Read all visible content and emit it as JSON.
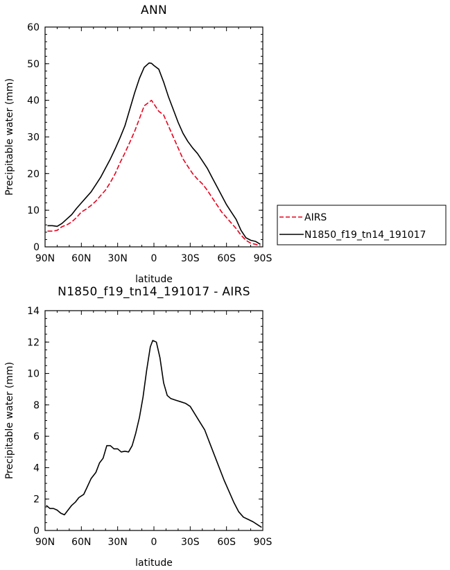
{
  "chart_data": [
    {
      "type": "line",
      "title": "ANN",
      "xlabel": "latitude",
      "ylabel": "Precipitable water (mm)",
      "xlim": [
        90,
        -90
      ],
      "ylim": [
        0,
        60
      ],
      "x_ticks": [
        {
          "v": 90,
          "label": "90N"
        },
        {
          "v": 60,
          "label": "60N"
        },
        {
          "v": 30,
          "label": "30N"
        },
        {
          "v": 0,
          "label": "0"
        },
        {
          "v": -30,
          "label": "30S"
        },
        {
          "v": -60,
          "label": "60S"
        },
        {
          "v": -90,
          "label": "90S"
        }
      ],
      "y_ticks": [
        0,
        10,
        20,
        30,
        40,
        50,
        60
      ],
      "legend_position": "right",
      "series": [
        {
          "name": "AIRS",
          "color": "#e8001c",
          "dashed": true,
          "points": [
            [
              88,
              4.3
            ],
            [
              84,
              4.3
            ],
            [
              80,
              4.5
            ],
            [
              76,
              5.5
            ],
            [
              72,
              6.0
            ],
            [
              68,
              6.8
            ],
            [
              64,
              8.0
            ],
            [
              60,
              9.5
            ],
            [
              56,
              10.3
            ],
            [
              52,
              11.3
            ],
            [
              48,
              12.5
            ],
            [
              44,
              14.0
            ],
            [
              40,
              15.5
            ],
            [
              36,
              17.6
            ],
            [
              32,
              20.0
            ],
            [
              28,
              23.0
            ],
            [
              24,
              25.6
            ],
            [
              20,
              28.5
            ],
            [
              16,
              31.5
            ],
            [
              12,
              35.0
            ],
            [
              8,
              38.5
            ],
            [
              4,
              39.5
            ],
            [
              2,
              40.0
            ],
            [
              0,
              39.0
            ],
            [
              -2,
              38.0
            ],
            [
              -4,
              37.0
            ],
            [
              -8,
              36.0
            ],
            [
              -12,
              33.0
            ],
            [
              -16,
              30.0
            ],
            [
              -20,
              27.0
            ],
            [
              -24,
              24.0
            ],
            [
              -28,
              22.0
            ],
            [
              -32,
              20.0
            ],
            [
              -36,
              18.5
            ],
            [
              -40,
              17.2
            ],
            [
              -44,
              15.5
            ],
            [
              -48,
              13.5
            ],
            [
              -52,
              11.5
            ],
            [
              -56,
              9.5
            ],
            [
              -60,
              8.0
            ],
            [
              -64,
              6.5
            ],
            [
              -68,
              5.0
            ],
            [
              -72,
              3.2
            ],
            [
              -76,
              1.8
            ],
            [
              -80,
              1.0
            ],
            [
              -84,
              0.7
            ],
            [
              -88,
              0.3
            ]
          ]
        },
        {
          "name": "N1850_f19_tn14_191017",
          "color": "#000000",
          "dashed": false,
          "points": [
            [
              88,
              5.8
            ],
            [
              84,
              5.8
            ],
            [
              80,
              5.6
            ],
            [
              76,
              6.4
            ],
            [
              72,
              7.6
            ],
            [
              68,
              8.8
            ],
            [
              64,
              10.5
            ],
            [
              60,
              12.0
            ],
            [
              56,
              13.5
            ],
            [
              52,
              15.0
            ],
            [
              48,
              17.0
            ],
            [
              44,
              19.0
            ],
            [
              40,
              21.5
            ],
            [
              36,
              24.0
            ],
            [
              32,
              26.8
            ],
            [
              28,
              29.8
            ],
            [
              24,
              33.0
            ],
            [
              20,
              37.5
            ],
            [
              16,
              42.0
            ],
            [
              12,
              46.0
            ],
            [
              8,
              49.0
            ],
            [
              4,
              50.2
            ],
            [
              2,
              50.1
            ],
            [
              0,
              49.5
            ],
            [
              -4,
              48.5
            ],
            [
              -8,
              45.0
            ],
            [
              -12,
              41.0
            ],
            [
              -16,
              37.5
            ],
            [
              -20,
              34.0
            ],
            [
              -24,
              31.0
            ],
            [
              -28,
              28.8
            ],
            [
              -32,
              27.0
            ],
            [
              -36,
              25.5
            ],
            [
              -40,
              23.5
            ],
            [
              -44,
              21.5
            ],
            [
              -48,
              19.0
            ],
            [
              -52,
              16.5
            ],
            [
              -56,
              14.0
            ],
            [
              -60,
              11.5
            ],
            [
              -64,
              9.5
            ],
            [
              -68,
              7.5
            ],
            [
              -72,
              4.5
            ],
            [
              -76,
              2.5
            ],
            [
              -80,
              1.8
            ],
            [
              -84,
              1.5
            ],
            [
              -88,
              0.7
            ]
          ]
        }
      ]
    },
    {
      "type": "line",
      "title": "N1850_f19_tn14_191017 - AIRS",
      "xlabel": "latitude",
      "ylabel": "Precipitable water (mm)",
      "xlim": [
        90,
        -90
      ],
      "ylim": [
        0,
        14
      ],
      "x_ticks": [
        {
          "v": 90,
          "label": "90N"
        },
        {
          "v": 60,
          "label": "60N"
        },
        {
          "v": 30,
          "label": "30N"
        },
        {
          "v": 0,
          "label": "0"
        },
        {
          "v": -30,
          "label": "30S"
        },
        {
          "v": -60,
          "label": "60S"
        },
        {
          "v": -90,
          "label": "90S"
        }
      ],
      "y_ticks": [
        0,
        2,
        4,
        6,
        8,
        10,
        12,
        14
      ],
      "series": [
        {
          "color": "#000000",
          "dashed": false,
          "points": [
            [
              89,
              1.6
            ],
            [
              86,
              1.4
            ],
            [
              83,
              1.4
            ],
            [
              80,
              1.3
            ],
            [
              77,
              1.1
            ],
            [
              74,
              1.0
            ],
            [
              71,
              1.3
            ],
            [
              68,
              1.6
            ],
            [
              65,
              1.8
            ],
            [
              62,
              2.1
            ],
            [
              58,
              2.3
            ],
            [
              55,
              2.8
            ],
            [
              52,
              3.3
            ],
            [
              48,
              3.7
            ],
            [
              45,
              4.3
            ],
            [
              42,
              4.6
            ],
            [
              39,
              5.4
            ],
            [
              36,
              5.4
            ],
            [
              33,
              5.2
            ],
            [
              30,
              5.2
            ],
            [
              27,
              5.0
            ],
            [
              24,
              5.05
            ],
            [
              21,
              5.0
            ],
            [
              18,
              5.4
            ],
            [
              15,
              6.2
            ],
            [
              12,
              7.2
            ],
            [
              9,
              8.5
            ],
            [
              6,
              10.2
            ],
            [
              3,
              11.7
            ],
            [
              1,
              12.1
            ],
            [
              -2,
              12.0
            ],
            [
              -5,
              11.0
            ],
            [
              -8,
              9.4
            ],
            [
              -11,
              8.6
            ],
            [
              -14,
              8.4
            ],
            [
              -18,
              8.3
            ],
            [
              -22,
              8.2
            ],
            [
              -26,
              8.1
            ],
            [
              -30,
              7.9
            ],
            [
              -34,
              7.4
            ],
            [
              -38,
              6.9
            ],
            [
              -42,
              6.4
            ],
            [
              -46,
              5.6
            ],
            [
              -50,
              4.8
            ],
            [
              -54,
              4.0
            ],
            [
              -58,
              3.2
            ],
            [
              -62,
              2.5
            ],
            [
              -66,
              1.8
            ],
            [
              -70,
              1.2
            ],
            [
              -74,
              0.85
            ],
            [
              -78,
              0.7
            ],
            [
              -82,
              0.55
            ],
            [
              -86,
              0.35
            ],
            [
              -89,
              0.2
            ]
          ]
        }
      ]
    }
  ]
}
